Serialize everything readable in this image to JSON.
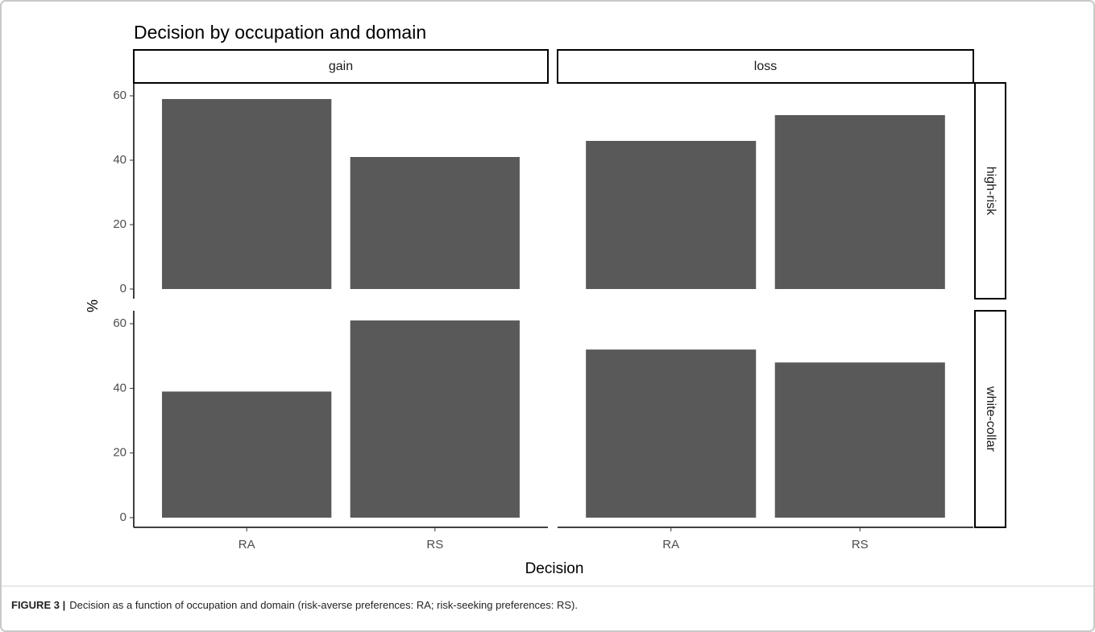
{
  "chart_data": {
    "type": "bar",
    "title": "Decision by occupation and domain",
    "xlabel": "Decision",
    "ylabel": "%",
    "columns": [
      "gain",
      "loss"
    ],
    "rows": [
      "high-risk",
      "white-collar"
    ],
    "categories": [
      "RA",
      "RS"
    ],
    "values": [
      [
        [
          59,
          41
        ],
        [
          46,
          54
        ]
      ],
      [
        [
          39,
          61
        ],
        [
          52,
          48
        ]
      ]
    ],
    "color": "#595959",
    "ylim": [
      -3,
      64
    ],
    "yticks": [
      0,
      20,
      40,
      60
    ],
    "grid": false
  },
  "caption": {
    "label": "FIGURE 3 |",
    "text": "Decision as a function of occupation and domain (risk-averse preferences: RA; risk-seeking preferences: RS)."
  }
}
